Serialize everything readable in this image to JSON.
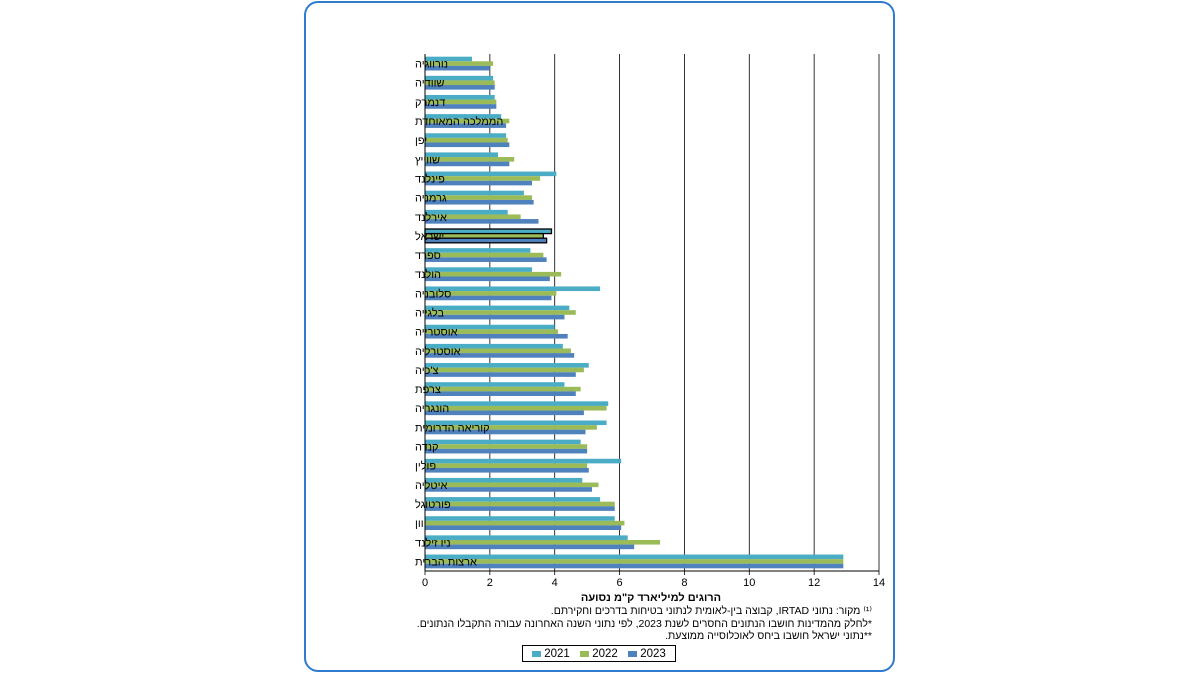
{
  "chart_data": {
    "type": "bar",
    "orientation": "horizontal",
    "categories": [
      "נורווגיה",
      "שוודיה",
      "דנמרק",
      "הממלכה המאוחדת",
      "יפן",
      "שווייץ",
      "פינלנד",
      "גרמניה",
      "אירלנד",
      "ישראל",
      "ספרד",
      "הולנד",
      "סלובניה",
      "בלגייה",
      "אוסטרייה",
      "אוסטרליה",
      "צ'כיה",
      "צרפת",
      "הונגריה",
      "קוריאה הדרומית",
      "קנדה",
      "פולין",
      "איטליה",
      "פורטוגל",
      "יוון",
      "ניו זילנד",
      "ארצות הברית"
    ],
    "series": [
      {
        "name": "2021",
        "color": "#4bacc6",
        "values": [
          1.45,
          2.1,
          2.15,
          2.35,
          2.5,
          2.25,
          4.05,
          3.05,
          2.55,
          3.9,
          3.25,
          3.3,
          5.4,
          4.45,
          4.0,
          4.25,
          5.05,
          4.3,
          5.65,
          5.6,
          4.8,
          6.05,
          4.85,
          5.4,
          5.85,
          6.25,
          12.9
        ]
      },
      {
        "name": "2022",
        "color": "#9bbb59",
        "values": [
          2.1,
          2.15,
          2.2,
          2.6,
          2.55,
          2.75,
          3.55,
          3.3,
          2.95,
          3.65,
          3.65,
          4.2,
          4.05,
          4.65,
          4.1,
          4.5,
          4.9,
          4.8,
          5.6,
          5.3,
          5.0,
          5.0,
          5.35,
          5.85,
          6.15,
          7.25,
          12.9
        ]
      },
      {
        "name": "2023",
        "color": "#4f81bd",
        "values": [
          2.0,
          2.15,
          2.2,
          2.5,
          2.6,
          2.6,
          3.3,
          3.35,
          3.5,
          3.75,
          3.75,
          3.85,
          3.9,
          4.3,
          4.4,
          4.6,
          4.65,
          4.65,
          4.9,
          4.95,
          5.0,
          5.05,
          5.15,
          5.85,
          6.05,
          6.45,
          12.9
        ]
      }
    ],
    "highlight_category": "ישראל",
    "xlim": [
      0,
      14
    ],
    "xticks": [
      0,
      2,
      4,
      6,
      8,
      10,
      12,
      14
    ],
    "xlabel": "הרוגים למיליארד ק\"מ נסועה",
    "grid": "vertical",
    "legend_position": "bottom"
  },
  "notes": [
    "⁽¹⁾ מקור: נתוני IRTAD, קבוצה בין-לאומית לנתוני בטיחות בדרכים וחקירתם.",
    "*לחלק מהמדינות חושבו הנתונים החסרים לשנת 2023, לפי נתוני השנה האחרונה עבורה התקבלו הנתונים.",
    "**נתוני ישראל חושבו ביחס לאוכלוסייה ממוצעת."
  ],
  "legend": [
    {
      "label": "2021",
      "color": "#4bacc6"
    },
    {
      "label": "2022",
      "color": "#9bbb59"
    },
    {
      "label": "2023",
      "color": "#4f81bd"
    }
  ]
}
